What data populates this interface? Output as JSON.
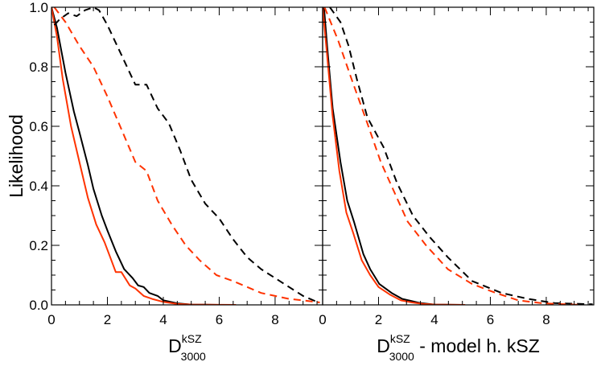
{
  "chart_data": [
    {
      "type": "line",
      "ylabel": "Likelihood",
      "xlabel": {
        "main": "D",
        "sup": "kSZ",
        "sub": "3000",
        "suffix": ""
      },
      "xlim": [
        0,
        9.7
      ],
      "ylim": [
        0,
        1.0
      ],
      "xticks": [
        "0",
        "2",
        "4",
        "6",
        "8"
      ],
      "yticks": [
        "0.0",
        "0.2",
        "0.4",
        "0.6",
        "0.8",
        "1.0"
      ],
      "grid": false,
      "series": [
        {
          "color": "#000000",
          "style": "solid",
          "points": [
            [
              0,
              1.0
            ],
            [
              0.2,
              0.93
            ],
            [
              0.5,
              0.78
            ],
            [
              0.8,
              0.65
            ],
            [
              1.0,
              0.58
            ],
            [
              1.3,
              0.47
            ],
            [
              1.5,
              0.39
            ],
            [
              1.8,
              0.3
            ],
            [
              2.0,
              0.25
            ],
            [
              2.3,
              0.18
            ],
            [
              2.6,
              0.12
            ],
            [
              2.9,
              0.09
            ],
            [
              3.1,
              0.065
            ],
            [
              3.3,
              0.06
            ],
            [
              3.5,
              0.04
            ],
            [
              3.8,
              0.03
            ],
            [
              4.0,
              0.015
            ],
            [
              4.5,
              0.005
            ],
            [
              5,
              0.001
            ],
            [
              6,
              0
            ]
          ]
        },
        {
          "color": "#ff3300",
          "style": "solid",
          "points": [
            [
              0,
              1.0
            ],
            [
              0.2,
              0.9
            ],
            [
              0.4,
              0.76
            ],
            [
              0.7,
              0.6
            ],
            [
              1.0,
              0.48
            ],
            [
              1.3,
              0.36
            ],
            [
              1.6,
              0.27
            ],
            [
              1.9,
              0.21
            ],
            [
              2.1,
              0.16
            ],
            [
              2.3,
              0.11
            ],
            [
              2.5,
              0.11
            ],
            [
              2.8,
              0.065
            ],
            [
              3.0,
              0.055
            ],
            [
              3.3,
              0.03
            ],
            [
              3.6,
              0.02
            ],
            [
              4,
              0.01
            ],
            [
              4.5,
              0.003
            ],
            [
              5,
              0.001
            ],
            [
              6.6,
              0
            ]
          ]
        },
        {
          "color": "#000000",
          "style": "dashed",
          "points": [
            [
              0.1,
              0.94
            ],
            [
              0.3,
              0.96
            ],
            [
              0.6,
              0.98
            ],
            [
              0.9,
              0.97
            ],
            [
              1.2,
              0.99
            ],
            [
              1.5,
              1.0
            ],
            [
              1.7,
              0.99
            ],
            [
              2.0,
              0.94
            ],
            [
              2.5,
              0.84
            ],
            [
              3.0,
              0.74
            ],
            [
              3.4,
              0.74
            ],
            [
              3.8,
              0.66
            ],
            [
              4.2,
              0.61
            ],
            [
              4.6,
              0.52
            ],
            [
              5.0,
              0.42
            ],
            [
              5.5,
              0.34
            ],
            [
              6.0,
              0.29
            ],
            [
              6.5,
              0.22
            ],
            [
              7.0,
              0.16
            ],
            [
              7.5,
              0.12
            ],
            [
              8.0,
              0.09
            ],
            [
              8.5,
              0.06
            ],
            [
              9.0,
              0.03
            ],
            [
              9.5,
              0.01
            ]
          ]
        },
        {
          "color": "#ff3300",
          "style": "dashed",
          "points": [
            [
              0.1,
              1.0
            ],
            [
              0.5,
              0.95
            ],
            [
              1.0,
              0.87
            ],
            [
              1.5,
              0.8
            ],
            [
              2.0,
              0.7
            ],
            [
              2.5,
              0.59
            ],
            [
              3.0,
              0.48
            ],
            [
              3.4,
              0.45
            ],
            [
              3.8,
              0.35
            ],
            [
              4.3,
              0.27
            ],
            [
              4.8,
              0.2
            ],
            [
              5.3,
              0.15
            ],
            [
              5.9,
              0.1
            ],
            [
              6.5,
              0.08
            ],
            [
              7.0,
              0.06
            ],
            [
              7.5,
              0.04
            ],
            [
              8.0,
              0.03
            ],
            [
              8.5,
              0.02
            ],
            [
              9.0,
              0.015
            ],
            [
              9.6,
              0.008
            ]
          ]
        }
      ]
    },
    {
      "type": "line",
      "ylabel": "",
      "xlabel": {
        "main": "D",
        "sup": "kSZ",
        "sub": "3000",
        "suffix": " - model h. kSZ"
      },
      "xlim": [
        0,
        9.7
      ],
      "ylim": [
        0,
        1.0
      ],
      "xticks": [
        "0",
        "2",
        "4",
        "6",
        "8"
      ],
      "yticks": [],
      "grid": false,
      "series": [
        {
          "color": "#000000",
          "style": "solid",
          "points": [
            [
              0.05,
              1.0
            ],
            [
              0.16,
              0.87
            ],
            [
              0.36,
              0.66
            ],
            [
              0.64,
              0.48
            ],
            [
              0.88,
              0.35
            ],
            [
              1.12,
              0.28
            ],
            [
              1.46,
              0.17
            ],
            [
              1.7,
              0.12
            ],
            [
              2.03,
              0.07
            ],
            [
              2.47,
              0.04
            ],
            [
              2.85,
              0.02
            ],
            [
              3.5,
              0.006
            ],
            [
              4,
              0.001
            ],
            [
              5,
              0
            ]
          ]
        },
        {
          "color": "#ff3300",
          "style": "solid",
          "points": [
            [
              0,
              1.0
            ],
            [
              0.15,
              0.85
            ],
            [
              0.35,
              0.64
            ],
            [
              0.6,
              0.45
            ],
            [
              0.85,
              0.31
            ],
            [
              1.1,
              0.24
            ],
            [
              1.4,
              0.15
            ],
            [
              1.7,
              0.1
            ],
            [
              2.0,
              0.06
            ],
            [
              2.4,
              0.035
            ],
            [
              2.8,
              0.015
            ],
            [
              3.2,
              0.008
            ],
            [
              3.6,
              0.003
            ],
            [
              4.0,
              0.001
            ],
            [
              5.1,
              0
            ]
          ]
        },
        {
          "color": "#000000",
          "style": "dashed",
          "points": [
            [
              0.26,
              1.0
            ],
            [
              0.64,
              0.95
            ],
            [
              0.93,
              0.87
            ],
            [
              1.22,
              0.76
            ],
            [
              1.6,
              0.63
            ],
            [
              2.18,
              0.53
            ],
            [
              2.66,
              0.41
            ],
            [
              3.23,
              0.3
            ],
            [
              3.81,
              0.23
            ],
            [
              4.48,
              0.16
            ],
            [
              5.35,
              0.08
            ],
            [
              6.4,
              0.04
            ],
            [
              7.36,
              0.02
            ],
            [
              8.3,
              0.006
            ],
            [
              9.66,
              0.002
            ]
          ]
        },
        {
          "color": "#ff3300",
          "style": "dashed",
          "points": [
            [
              0.07,
              1.0
            ],
            [
              0.55,
              0.89
            ],
            [
              1.03,
              0.76
            ],
            [
              1.6,
              0.61
            ],
            [
              2.08,
              0.48
            ],
            [
              2.56,
              0.38
            ],
            [
              3.04,
              0.28
            ],
            [
              3.7,
              0.2
            ],
            [
              4.48,
              0.12
            ],
            [
              5.35,
              0.07
            ],
            [
              6.2,
              0.04
            ],
            [
              7.0,
              0.015
            ],
            [
              7.9,
              0.005
            ],
            [
              9.2,
              0
            ]
          ]
        }
      ]
    }
  ]
}
